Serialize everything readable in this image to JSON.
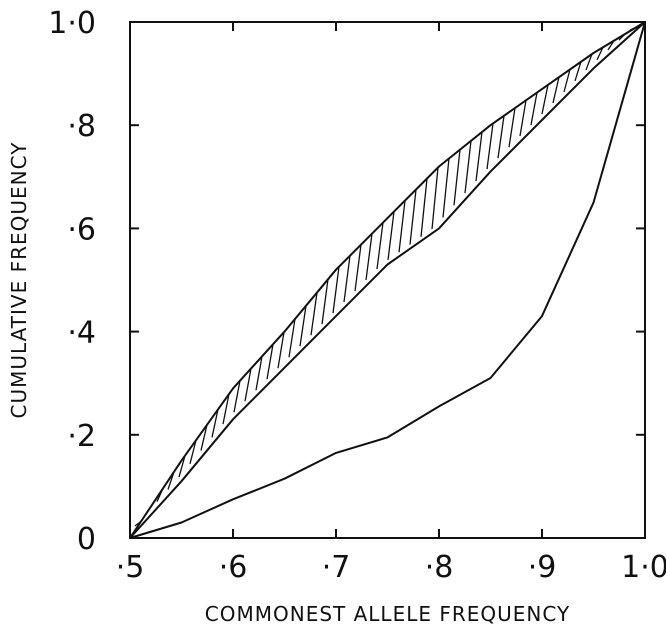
{
  "chart_data": {
    "type": "line",
    "xlabel": "COMMONEST ALLELE FREQUENCY",
    "ylabel": "CUMULATIVE  FREQUENCY",
    "xlim": [
      0.5,
      1.0
    ],
    "ylim": [
      0,
      1.0
    ],
    "x_ticks": [
      {
        "value": 0.5,
        "label": "·5"
      },
      {
        "value": 0.6,
        "label": "·6"
      },
      {
        "value": 0.7,
        "label": "·7"
      },
      {
        "value": 0.8,
        "label": "·8"
      },
      {
        "value": 0.9,
        "label": "·9"
      },
      {
        "value": 1.0,
        "label": "1·0"
      }
    ],
    "y_ticks": [
      {
        "value": 0,
        "label": "0"
      },
      {
        "value": 0.2,
        "label": "·2"
      },
      {
        "value": 0.4,
        "label": "·4"
      },
      {
        "value": 0.6,
        "label": "·6"
      },
      {
        "value": 0.8,
        "label": "·8"
      },
      {
        "value": 1.0,
        "label": "1·0"
      }
    ],
    "grid": false,
    "series": [
      {
        "role": "band-upper",
        "x": [
          0.5,
          0.55,
          0.6,
          0.65,
          0.7,
          0.75,
          0.8,
          0.85,
          0.9,
          0.95,
          1.0
        ],
        "y": [
          0,
          0.15,
          0.29,
          0.4,
          0.52,
          0.62,
          0.72,
          0.8,
          0.87,
          0.94,
          1.0
        ]
      },
      {
        "role": "band-lower",
        "x": [
          0.5,
          0.55,
          0.6,
          0.65,
          0.7,
          0.75,
          0.8,
          0.85,
          0.9,
          0.95,
          1.0
        ],
        "y": [
          0,
          0.11,
          0.23,
          0.33,
          0.43,
          0.53,
          0.6,
          0.71,
          0.81,
          0.91,
          1.0
        ]
      },
      {
        "role": "line",
        "x": [
          0.5,
          0.55,
          0.6,
          0.65,
          0.7,
          0.75,
          0.8,
          0.85,
          0.9,
          0.95,
          1.0
        ],
        "y": [
          0,
          0.03,
          0.075,
          0.115,
          0.165,
          0.195,
          0.255,
          0.31,
          0.43,
          0.65,
          1.0
        ]
      }
    ],
    "band_fill": "vertical-hatch",
    "colors": {
      "ink": "#111111",
      "background": "#ffffff"
    }
  }
}
